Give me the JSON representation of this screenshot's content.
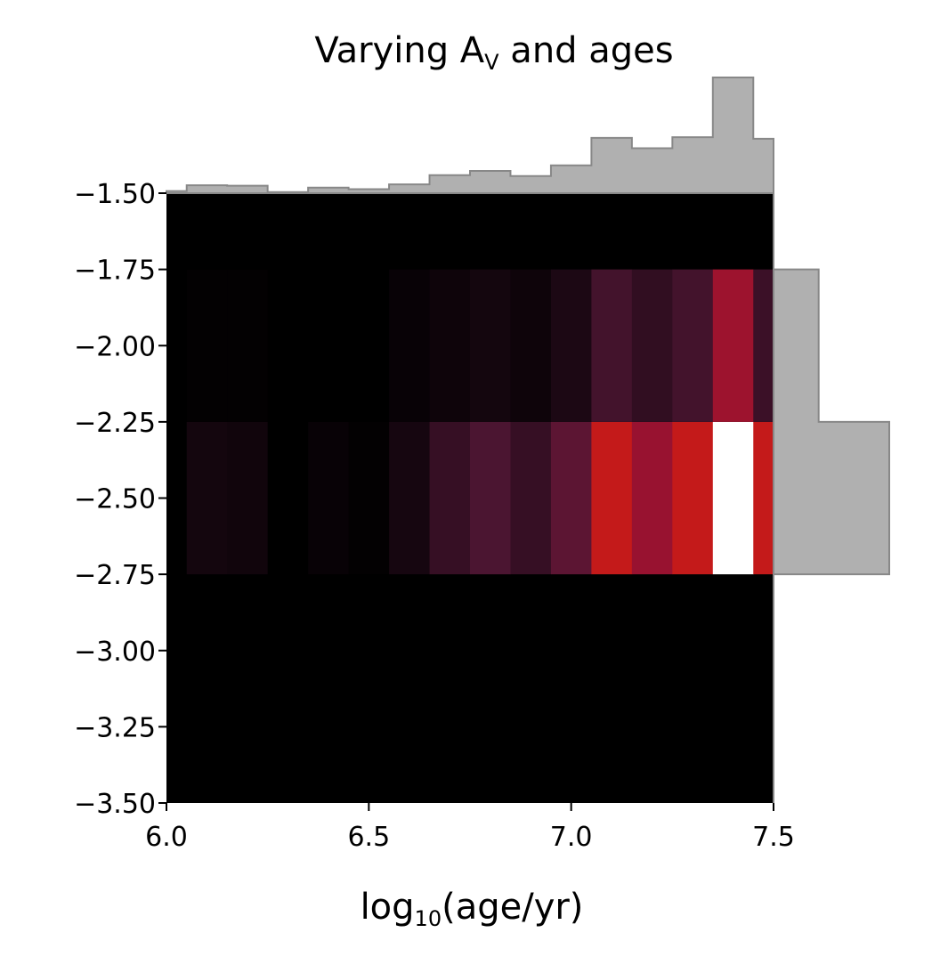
{
  "chart_data": {
    "type": "heatmap",
    "title": {
      "main": "Varying A",
      "subscript": "V",
      "rest": " and ages"
    },
    "xlabel": {
      "main": "log",
      "subscript": "10",
      "rest": "(age/yr)"
    },
    "ylabel": "",
    "xlim": [
      6.0,
      7.5
    ],
    "ylim": [
      -3.5,
      -1.5
    ],
    "x_ticks": [
      "6.0",
      "6.5",
      "7.0",
      "7.5"
    ],
    "y_ticks": [
      "−1.50",
      "−1.75",
      "−2.00",
      "−2.25",
      "−2.50",
      "−2.75",
      "−3.00",
      "−3.25",
      "−3.50"
    ],
    "x_tick_values": [
      6.0,
      6.5,
      7.0,
      7.5
    ],
    "y_tick_values": [
      -1.5,
      -1.75,
      -2.0,
      -2.25,
      -2.5,
      -2.75,
      -3.0,
      -3.25,
      -3.5
    ],
    "colormap": "hot-like (black → dark red → red → white)",
    "x_bin_edges": [
      6.0,
      6.05,
      6.15,
      6.25,
      6.35,
      6.45,
      6.55,
      6.65,
      6.75,
      6.85,
      6.95,
      7.05,
      7.15,
      7.25,
      7.35,
      7.45,
      7.5
    ],
    "y_bin_edges": [
      -3.5,
      -2.75,
      -2.25,
      -1.75,
      -1.5
    ],
    "density_rows": [
      {
        "y_range": [
          -2.75,
          -2.25
        ],
        "values": [
          0.0,
          0.07,
          0.06,
          0.0,
          0.03,
          0.01,
          0.08,
          0.2,
          0.28,
          0.2,
          0.35,
          0.78,
          0.6,
          0.78,
          1.0,
          0.78
        ]
      },
      {
        "y_range": [
          -2.25,
          -1.75
        ],
        "values": [
          0.0,
          0.01,
          0.01,
          0.0,
          0.0,
          0.0,
          0.03,
          0.05,
          0.07,
          0.05,
          0.1,
          0.25,
          0.18,
          0.25,
          0.62,
          0.22
        ]
      }
    ],
    "top_histogram": {
      "color": "#b0b0b0",
      "edge_color": "#888888",
      "bin_edges": [
        6.0,
        6.05,
        6.15,
        6.25,
        6.35,
        6.45,
        6.55,
        6.65,
        6.75,
        6.85,
        6.95,
        7.05,
        7.15,
        7.25,
        7.35,
        7.45,
        7.5
      ],
      "values": [
        0.018,
        0.068,
        0.064,
        0.01,
        0.048,
        0.035,
        0.076,
        0.156,
        0.192,
        0.148,
        0.24,
        0.478,
        0.388,
        0.484,
        1.0,
        0.47
      ]
    },
    "right_histogram": {
      "color": "#b0b0b0",
      "edge_color": "#888888",
      "bin_edges": [
        -3.5,
        -2.75,
        -2.25,
        -1.75,
        -1.5
      ],
      "values": [
        0.0,
        1.0,
        0.39,
        0.0
      ]
    },
    "grid": false,
    "legend": "none"
  }
}
